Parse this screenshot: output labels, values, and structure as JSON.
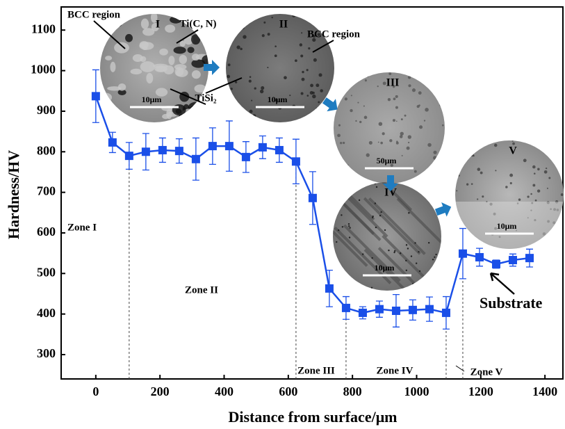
{
  "chart_data": {
    "type": "line",
    "x_label": "Distance from surface/μm",
    "y_label": "Hardness/HV",
    "x": [
      0,
      52,
      104,
      156,
      208,
      260,
      312,
      364,
      416,
      468,
      520,
      572,
      624,
      676,
      728,
      780,
      832,
      884,
      936,
      988,
      1040,
      1092,
      1144,
      1196,
      1248,
      1300,
      1352
    ],
    "series": [
      {
        "color": "#1a4fe8",
        "values": [
          937,
          823,
          790,
          800,
          804,
          802,
          782,
          814,
          814,
          787,
          811,
          804,
          776,
          686,
          463,
          415,
          403,
          412,
          408,
          410,
          412,
          403,
          549,
          540,
          523,
          533,
          538
        ],
        "errors": [
          65,
          25,
          33,
          45,
          30,
          30,
          52,
          45,
          62,
          38,
          28,
          30,
          55,
          65,
          45,
          28,
          15,
          20,
          40,
          25,
          30,
          40,
          62,
          22,
          10,
          15,
          22
        ]
      }
    ],
    "xlim": [
      -108,
      1456
    ],
    "xticks": [
      0,
      200,
      400,
      600,
      800,
      1000,
      1200,
      1400
    ],
    "ylim": [
      240,
      1157
    ],
    "yticks": [
      300,
      400,
      500,
      600,
      700,
      800,
      900,
      1000,
      1100
    ],
    "zones": [
      "Zone I",
      "Zone II",
      "Zone III",
      "Zone IV",
      "Zone V"
    ],
    "substrate_label": "Substrate",
    "insets": [
      {
        "label": "I",
        "scale": "10μm",
        "notes": [
          "BCC region",
          "Ti(C, N)",
          "TiSi₂"
        ]
      },
      {
        "label": "II",
        "scale": "10μm",
        "notes": [
          "BCC region"
        ]
      },
      {
        "label": "III",
        "scale": "50μm",
        "notes": []
      },
      {
        "label": "IV",
        "scale": "10μm",
        "notes": []
      },
      {
        "label": "V",
        "scale": "10μm",
        "notes": []
      }
    ]
  }
}
